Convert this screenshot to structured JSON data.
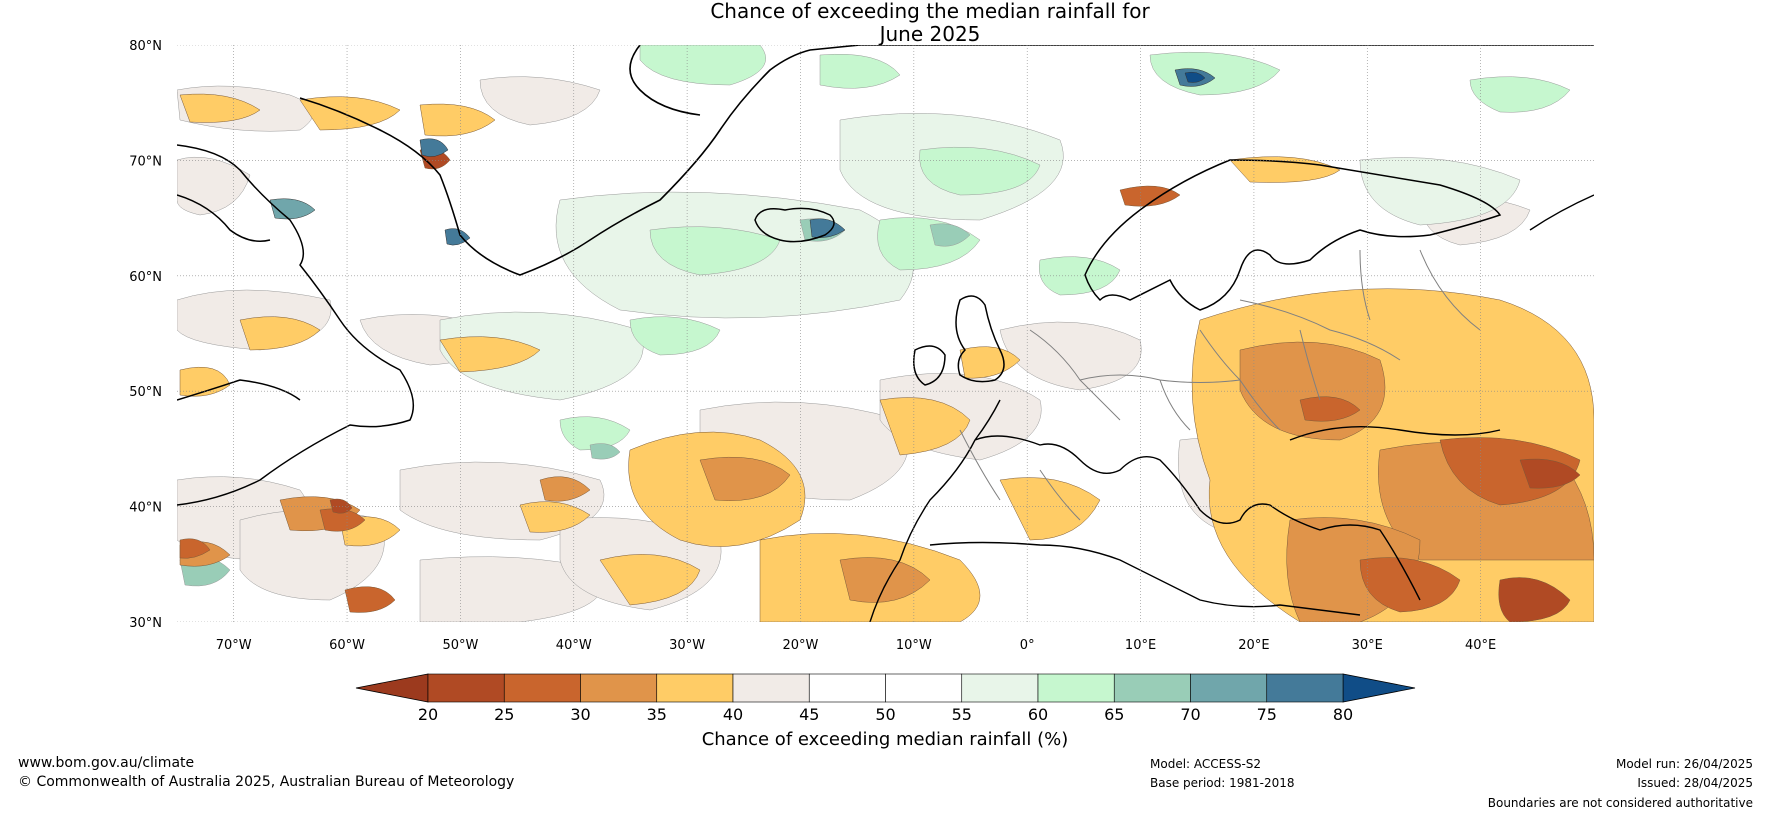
{
  "title": {
    "line1": "Chance of exceeding the median rainfall for",
    "line2": "June 2025"
  },
  "map": {
    "lat_labels": [
      "80°N",
      "70°N",
      "60°N",
      "50°N",
      "40°N",
      "30°N"
    ],
    "lon_labels": [
      "70°W",
      "60°W",
      "50°W",
      "40°W",
      "30°W",
      "20°W",
      "10°W",
      "0°",
      "10°E",
      "20°E",
      "30°E",
      "40°E"
    ],
    "lat_range": [
      30,
      80
    ],
    "lon_range": [
      -75,
      50
    ]
  },
  "colorbar": {
    "ticks": [
      "20",
      "25",
      "30",
      "35",
      "40",
      "45",
      "50",
      "55",
      "60",
      "65",
      "70",
      "75",
      "80"
    ],
    "colors": [
      "#b04a24",
      "#c9652d",
      "#e0944a",
      "#ffcc66",
      "#f1ebe7",
      "#ffffff",
      "#ffffff",
      "#e8f5e9",
      "#c6f7cf",
      "#99cdb7",
      "#70a6ab",
      "#447a99"
    ],
    "under_color": "#9c3a1e",
    "over_color": "#104d87",
    "label": "Chance of exceeding median rainfall (%)"
  },
  "footer": {
    "website": "www.bom.gov.au/climate",
    "copyright": "© Commonwealth of Australia 2025, Australian Bureau of Meteorology",
    "model": "Model: ACCESS-S2",
    "base_period": "Base period: 1981-2018",
    "model_run": "Model run: 26/04/2025",
    "issued": "Issued: 28/04/2025",
    "disclaimer": "Boundaries are not considered authoritative"
  }
}
